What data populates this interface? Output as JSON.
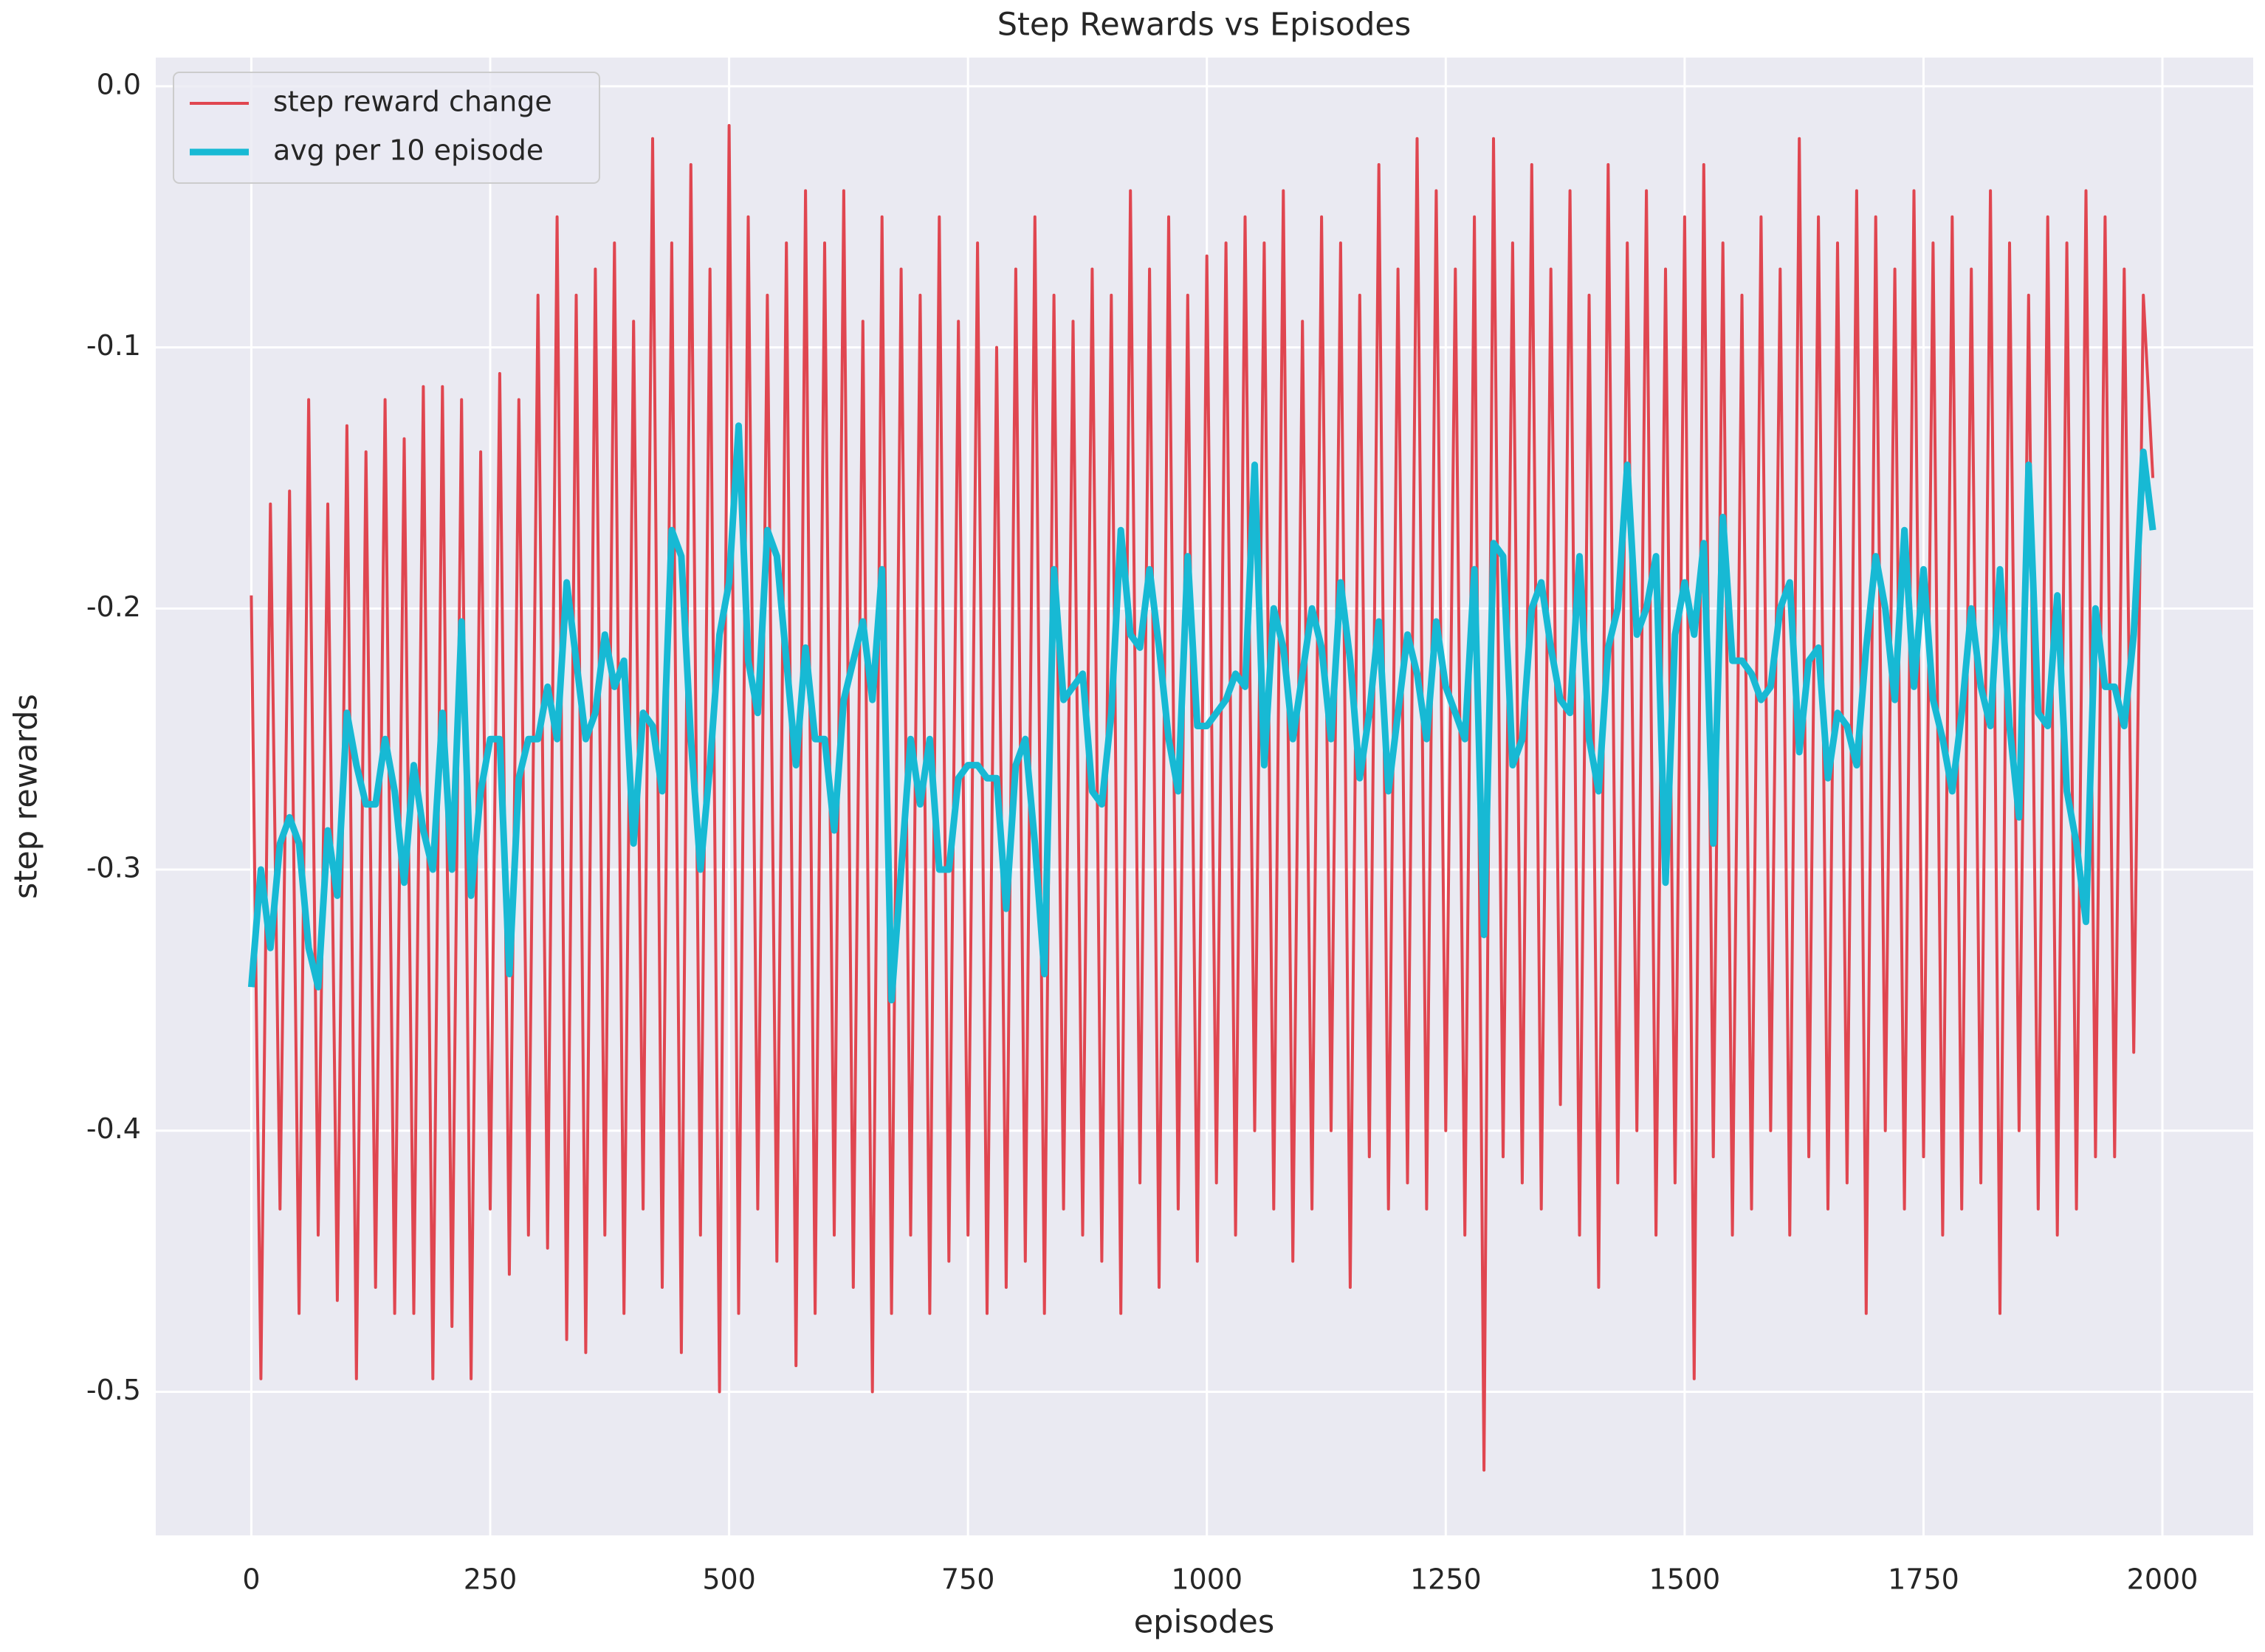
{
  "chart_data": {
    "type": "line",
    "title": "Step Rewards vs Episodes",
    "xlabel": "episodes",
    "ylabel": "step rewards",
    "x": [
      0,
      10,
      20,
      30,
      40,
      50,
      60,
      70,
      80,
      90,
      100,
      110,
      120,
      130,
      140,
      150,
      160,
      170,
      180,
      190,
      200,
      210,
      220,
      230,
      240,
      250,
      260,
      270,
      280,
      290,
      300,
      310,
      320,
      330,
      340,
      350,
      360,
      370,
      380,
      390,
      400,
      410,
      420,
      430,
      440,
      450,
      460,
      470,
      480,
      490,
      500,
      510,
      520,
      530,
      540,
      550,
      560,
      570,
      580,
      590,
      600,
      610,
      620,
      630,
      640,
      650,
      660,
      670,
      680,
      690,
      700,
      710,
      720,
      730,
      740,
      750,
      760,
      770,
      780,
      790,
      800,
      810,
      820,
      830,
      840,
      850,
      860,
      870,
      880,
      890,
      900,
      910,
      920,
      930,
      940,
      950,
      960,
      970,
      980,
      990,
      1000,
      1010,
      1020,
      1030,
      1040,
      1050,
      1060,
      1070,
      1080,
      1090,
      1100,
      1110,
      1120,
      1130,
      1140,
      1150,
      1160,
      1170,
      1180,
      1190,
      1200,
      1210,
      1220,
      1230,
      1240,
      1250,
      1260,
      1270,
      1280,
      1290,
      1300,
      1310,
      1320,
      1330,
      1340,
      1350,
      1360,
      1370,
      1380,
      1390,
      1400,
      1410,
      1420,
      1430,
      1440,
      1450,
      1460,
      1470,
      1480,
      1490,
      1500,
      1510,
      1520,
      1530,
      1540,
      1550,
      1560,
      1570,
      1580,
      1590,
      1600,
      1610,
      1620,
      1630,
      1640,
      1650,
      1660,
      1670,
      1680,
      1690,
      1700,
      1710,
      1720,
      1730,
      1740,
      1750,
      1760,
      1770,
      1780,
      1790,
      1800,
      1810,
      1820,
      1830,
      1840,
      1850,
      1860,
      1870,
      1880,
      1890,
      1900,
      1910,
      1920,
      1930,
      1940,
      1950,
      1960,
      1970,
      1980,
      1990
    ],
    "series": [
      {
        "name": "step reward change",
        "color": "#e04650",
        "values": [
          -0.195,
          -0.495,
          -0.16,
          -0.43,
          -0.155,
          -0.47,
          -0.12,
          -0.44,
          -0.16,
          -0.465,
          -0.13,
          -0.495,
          -0.14,
          -0.46,
          -0.12,
          -0.47,
          -0.135,
          -0.47,
          -0.115,
          -0.495,
          -0.115,
          -0.475,
          -0.12,
          -0.495,
          -0.14,
          -0.43,
          -0.11,
          -0.455,
          -0.12,
          -0.44,
          -0.08,
          -0.445,
          -0.05,
          -0.48,
          -0.08,
          -0.485,
          -0.07,
          -0.44,
          -0.06,
          -0.47,
          -0.09,
          -0.43,
          -0.02,
          -0.46,
          -0.06,
          -0.485,
          -0.03,
          -0.44,
          -0.07,
          -0.5,
          -0.015,
          -0.47,
          -0.05,
          -0.43,
          -0.08,
          -0.45,
          -0.06,
          -0.49,
          -0.04,
          -0.47,
          -0.06,
          -0.44,
          -0.04,
          -0.46,
          -0.09,
          -0.5,
          -0.05,
          -0.47,
          -0.07,
          -0.44,
          -0.08,
          -0.47,
          -0.05,
          -0.45,
          -0.09,
          -0.44,
          -0.06,
          -0.47,
          -0.1,
          -0.46,
          -0.07,
          -0.45,
          -0.05,
          -0.47,
          -0.08,
          -0.43,
          -0.09,
          -0.44,
          -0.07,
          -0.45,
          -0.08,
          -0.47,
          -0.04,
          -0.42,
          -0.07,
          -0.46,
          -0.05,
          -0.43,
          -0.08,
          -0.45,
          -0.065,
          -0.42,
          -0.06,
          -0.44,
          -0.05,
          -0.4,
          -0.06,
          -0.43,
          -0.04,
          -0.45,
          -0.09,
          -0.43,
          -0.05,
          -0.4,
          -0.06,
          -0.46,
          -0.08,
          -0.41,
          -0.03,
          -0.43,
          -0.07,
          -0.42,
          -0.02,
          -0.43,
          -0.04,
          -0.4,
          -0.07,
          -0.44,
          -0.05,
          -0.53,
          -0.02,
          -0.41,
          -0.06,
          -0.42,
          -0.03,
          -0.43,
          -0.07,
          -0.39,
          -0.04,
          -0.44,
          -0.08,
          -0.46,
          -0.03,
          -0.42,
          -0.06,
          -0.4,
          -0.04,
          -0.44,
          -0.07,
          -0.42,
          -0.05,
          -0.495,
          -0.03,
          -0.41,
          -0.06,
          -0.44,
          -0.08,
          -0.43,
          -0.05,
          -0.4,
          -0.07,
          -0.44,
          -0.02,
          -0.41,
          -0.05,
          -0.43,
          -0.06,
          -0.42,
          -0.04,
          -0.47,
          -0.05,
          -0.4,
          -0.07,
          -0.43,
          -0.04,
          -0.41,
          -0.06,
          -0.44,
          -0.05,
          -0.43,
          -0.07,
          -0.42,
          -0.04,
          -0.47,
          -0.06,
          -0.4,
          -0.08,
          -0.43,
          -0.05,
          -0.44,
          -0.06,
          -0.43,
          -0.04,
          -0.41,
          -0.05,
          -0.41,
          -0.07,
          -0.37,
          -0.08,
          -0.15
        ]
      },
      {
        "name": "avg per 10 episode",
        "color": "#17b9d4",
        "values": [
          -0.345,
          -0.3,
          -0.33,
          -0.29,
          -0.28,
          -0.29,
          -0.33,
          -0.345,
          -0.285,
          -0.31,
          -0.24,
          -0.26,
          -0.275,
          -0.275,
          -0.25,
          -0.27,
          -0.305,
          -0.26,
          -0.285,
          -0.3,
          -0.24,
          -0.3,
          -0.205,
          -0.31,
          -0.27,
          -0.25,
          -0.25,
          -0.34,
          -0.265,
          -0.25,
          -0.25,
          -0.23,
          -0.25,
          -0.19,
          -0.22,
          -0.25,
          -0.24,
          -0.21,
          -0.23,
          -0.22,
          -0.29,
          -0.24,
          -0.245,
          -0.27,
          -0.17,
          -0.18,
          -0.25,
          -0.3,
          -0.26,
          -0.21,
          -0.19,
          -0.13,
          -0.22,
          -0.24,
          -0.17,
          -0.18,
          -0.22,
          -0.26,
          -0.215,
          -0.25,
          -0.25,
          -0.285,
          -0.235,
          -0.22,
          -0.205,
          -0.235,
          -0.185,
          -0.35,
          -0.3,
          -0.25,
          -0.275,
          -0.25,
          -0.3,
          -0.3,
          -0.265,
          -0.26,
          -0.26,
          -0.265,
          -0.265,
          -0.315,
          -0.26,
          -0.25,
          -0.29,
          -0.34,
          -0.185,
          -0.235,
          -0.23,
          -0.225,
          -0.27,
          -0.275,
          -0.24,
          -0.17,
          -0.21,
          -0.215,
          -0.185,
          -0.215,
          -0.25,
          -0.27,
          -0.18,
          -0.245,
          -0.245,
          -0.24,
          -0.235,
          -0.225,
          -0.23,
          -0.145,
          -0.26,
          -0.2,
          -0.215,
          -0.25,
          -0.225,
          -0.2,
          -0.215,
          -0.25,
          -0.19,
          -0.22,
          -0.265,
          -0.24,
          -0.205,
          -0.27,
          -0.24,
          -0.21,
          -0.225,
          -0.25,
          -0.205,
          -0.23,
          -0.24,
          -0.25,
          -0.185,
          -0.325,
          -0.175,
          -0.18,
          -0.26,
          -0.25,
          -0.2,
          -0.19,
          -0.215,
          -0.235,
          -0.24,
          -0.18,
          -0.25,
          -0.27,
          -0.215,
          -0.2,
          -0.145,
          -0.21,
          -0.2,
          -0.18,
          -0.305,
          -0.21,
          -0.19,
          -0.21,
          -0.175,
          -0.29,
          -0.165,
          -0.22,
          -0.22,
          -0.225,
          -0.235,
          -0.23,
          -0.2,
          -0.19,
          -0.255,
          -0.22,
          -0.215,
          -0.265,
          -0.24,
          -0.245,
          -0.26,
          -0.215,
          -0.18,
          -0.2,
          -0.235,
          -0.17,
          -0.23,
          -0.185,
          -0.235,
          -0.25,
          -0.27,
          -0.24,
          -0.2,
          -0.23,
          -0.245,
          -0.185,
          -0.245,
          -0.28,
          -0.145,
          -0.24,
          -0.245,
          -0.195,
          -0.27,
          -0.29,
          -0.32,
          -0.2,
          -0.23,
          -0.23,
          -0.245,
          -0.21,
          -0.14,
          -0.17
        ]
      }
    ],
    "xlim": [
      -100,
      2095
    ],
    "ylim": [
      -0.555,
      0.011
    ],
    "xticks": [
      0,
      250,
      500,
      750,
      1000,
      1250,
      1500,
      1750,
      2000
    ],
    "yticks": [
      {
        "value": 0,
        "label": "0.0"
      },
      -0.1,
      -0.2,
      -0.3,
      -0.4,
      -0.5
    ],
    "grid": true,
    "legend": "upper left"
  }
}
